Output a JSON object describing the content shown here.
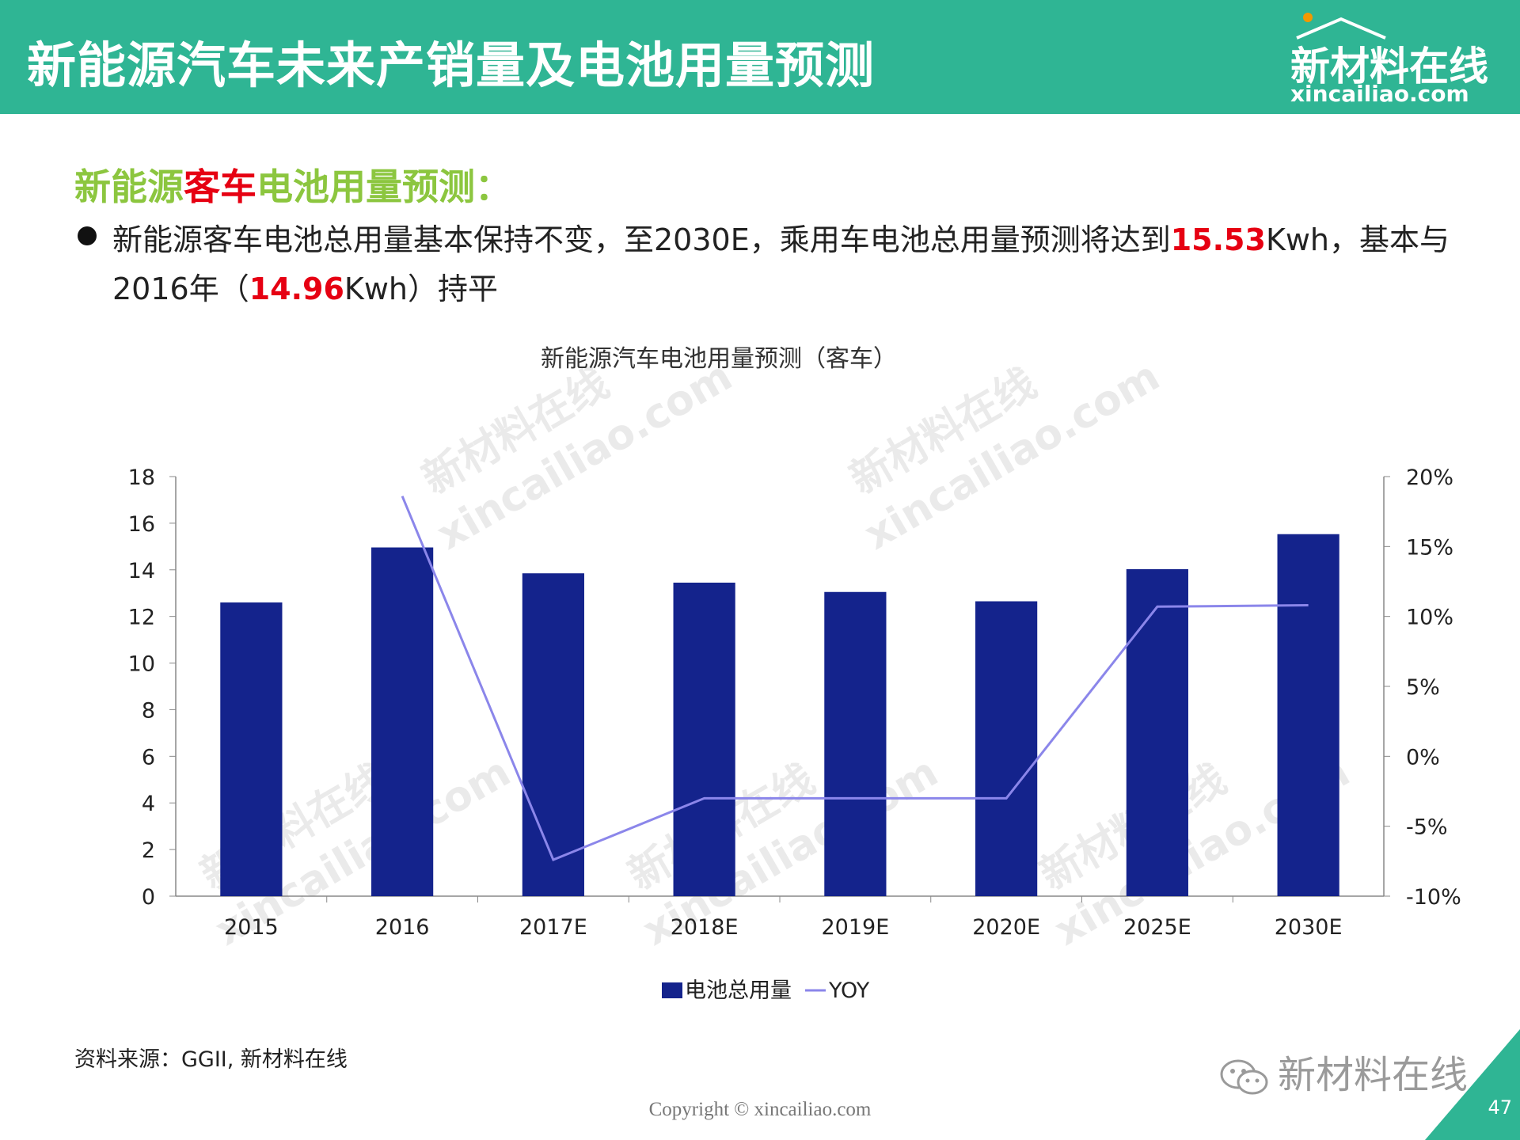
{
  "header": {
    "title": "新能源汽车未来产销量及电池用量预测"
  },
  "logo": {
    "cn": "新材料在线",
    "en": "xincailiao.com"
  },
  "subhead": {
    "part1": "新能源",
    "part2": "客车",
    "part3": "电池用量预测："
  },
  "bullet": {
    "text1": "新能源客车电池总用量基本保持不变，至2030E，乘用车电池总用量预测将达到",
    "num1": "15.53",
    "text2": "Kwh，基本与2016年（",
    "num2": "14.96",
    "text3": "Kwh）持平"
  },
  "chart_data": {
    "type": "bar",
    "title": "新能源汽车电池用量预测（客车）",
    "categories": [
      "2015",
      "2016",
      "2017E",
      "2018E",
      "2019E",
      "2020E",
      "2025E",
      "2030E"
    ],
    "series": [
      {
        "name": "电池总用量",
        "type": "bar",
        "axis": "left",
        "values": [
          12.6,
          14.96,
          13.85,
          13.45,
          13.05,
          12.65,
          14.03,
          15.53
        ]
      },
      {
        "name": "YOY",
        "type": "line",
        "axis": "right",
        "values": [
          null,
          0.186,
          -0.074,
          -0.03,
          -0.03,
          -0.03,
          0.107,
          0.108
        ]
      }
    ],
    "y_left": {
      "min": 0,
      "max": 18,
      "step": 2,
      "ticks": [
        "0",
        "2",
        "4",
        "6",
        "8",
        "10",
        "12",
        "14",
        "16",
        "18"
      ]
    },
    "y_right": {
      "min": -0.1,
      "max": 0.2,
      "step": 0.05,
      "ticks": [
        "-10%",
        "-5%",
        "0%",
        "5%",
        "10%",
        "15%",
        "20%"
      ]
    },
    "legend_position": "bottom",
    "colors": {
      "bar": "#14238c",
      "line": "#8b86ea"
    }
  },
  "watermark": {
    "cn": "新材料在线",
    "en": "xincailiao.com"
  },
  "source": "资料来源：GGII, 新材料在线",
  "copyright": "Copyright © xincailiao.com",
  "wechat": "新材料在线",
  "page_number": "47"
}
